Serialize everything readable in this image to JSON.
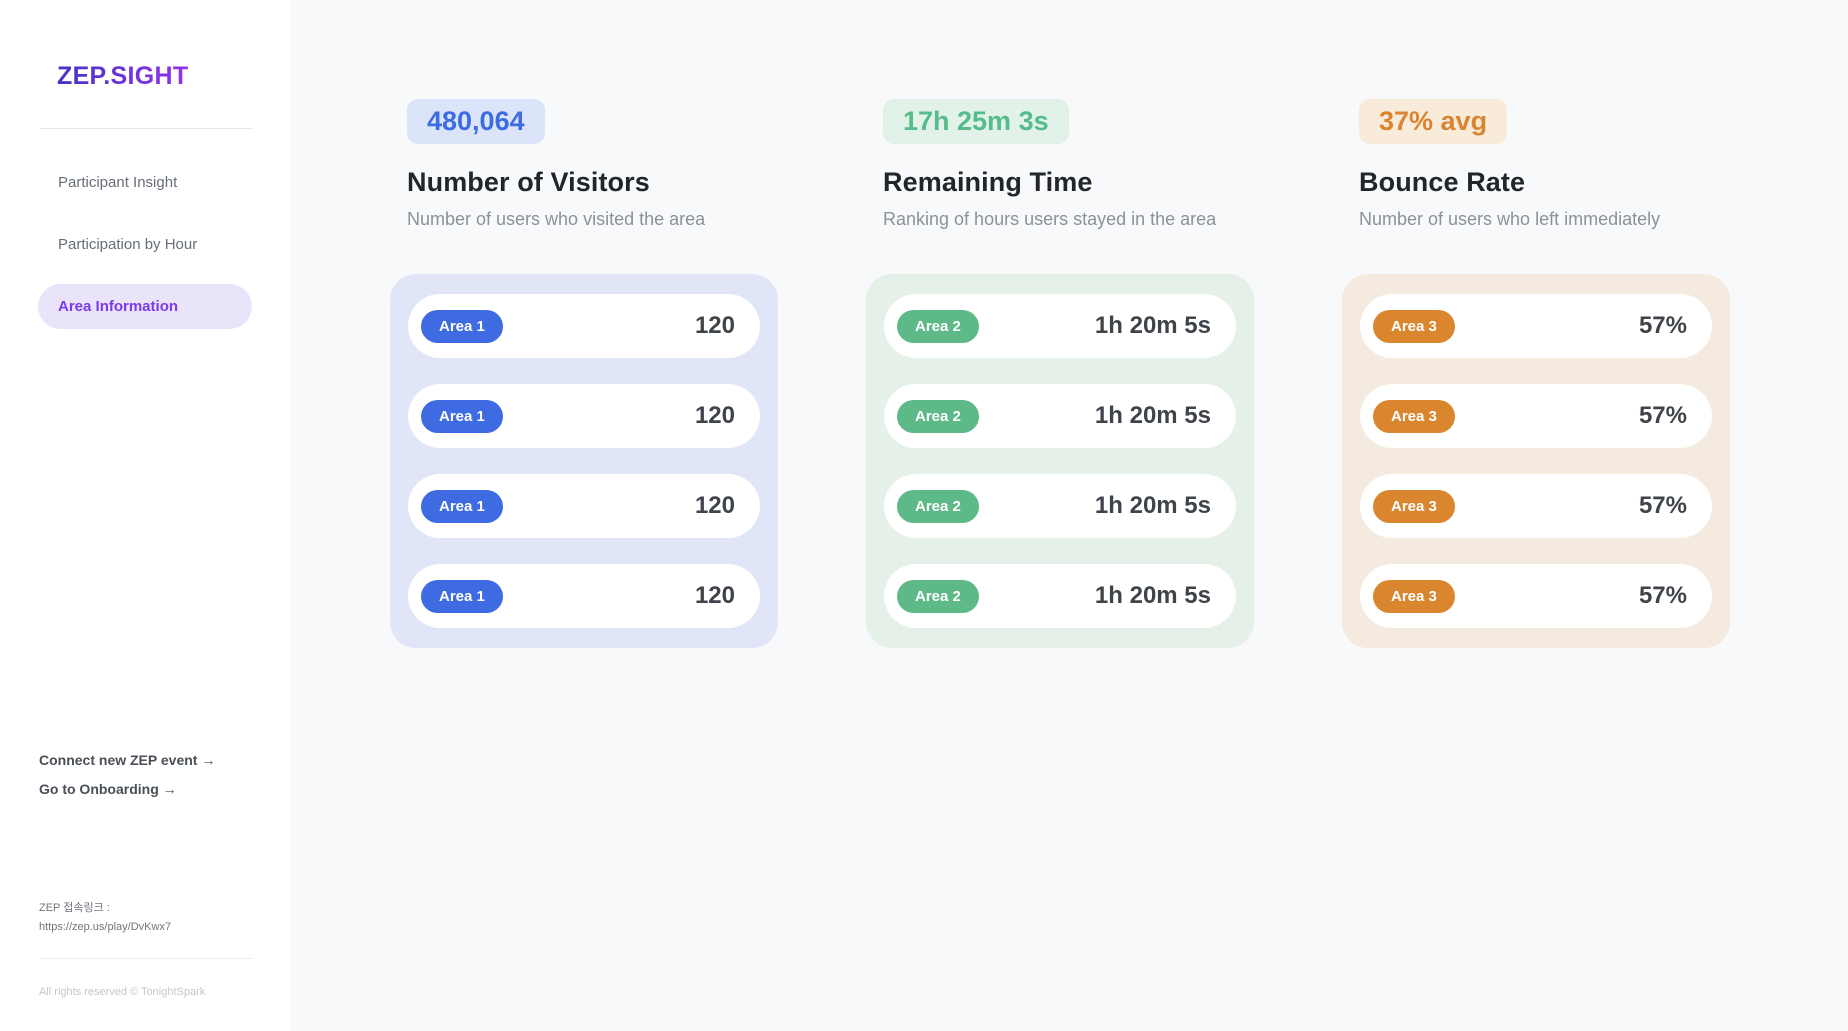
{
  "brand": {
    "logo_text": "ZEP.SIGHT",
    "logo_gradient_from": "#4433c6",
    "logo_gradient_to": "#9333ea",
    "active_nav_bg": "#eae4fa",
    "active_nav_text": "#7c3aed"
  },
  "sidebar": {
    "nav": [
      {
        "label": "Participant Insight"
      },
      {
        "label": "Participation by Hour"
      },
      {
        "label": "Area Information"
      }
    ],
    "links": [
      {
        "label": "Connect new ZEP event →"
      },
      {
        "label": "Go to Onboarding →"
      }
    ],
    "zep_link_label": "ZEP 접속링크 :",
    "zep_link_url": "https://zep.us/play/DvKwx7",
    "copyright": "All rights reserved © TonightSpark"
  },
  "columns": [
    {
      "badge": "480,064",
      "title": "Number of Visitors",
      "subtitle": "Number of users who visited the area",
      "colors": {
        "accent": "#3d6be3",
        "badge_bg": "#dce4f9",
        "card_bg": "#e0e6f7",
        "pill": "#3e6be2"
      },
      "rows": [
        {
          "area": "Area 1",
          "value": "120"
        },
        {
          "area": "Area 1",
          "value": "120"
        },
        {
          "area": "Area 1",
          "value": "120"
        },
        {
          "area": "Area 1",
          "value": "120"
        }
      ]
    },
    {
      "badge": "17h 25m 3s",
      "title": "Remaining Time",
      "subtitle": "Ranking of hours users stayed in the area",
      "colors": {
        "accent": "#54bd8b",
        "badge_bg": "#e3f2e8",
        "card_bg": "#e5f0e8",
        "pill": "#5eb989"
      },
      "rows": [
        {
          "area": "Area 2",
          "value": "1h 20m 5s"
        },
        {
          "area": "Area 2",
          "value": "1h 20m 5s"
        },
        {
          "area": "Area 2",
          "value": "1h 20m 5s"
        },
        {
          "area": "Area 2",
          "value": "1h 20m 5s"
        }
      ]
    },
    {
      "badge": "37% avg",
      "title": "Bounce Rate",
      "subtitle": "Number of users who left immediately",
      "colors": {
        "accent": "#db8430",
        "badge_bg": "#f9ebda",
        "card_bg": "#f4eadf",
        "pill": "#d9862f"
      },
      "rows": [
        {
          "area": "Area 3",
          "value": "57%"
        },
        {
          "area": "Area 3",
          "value": "57%"
        },
        {
          "area": "Area 3",
          "value": "57%"
        },
        {
          "area": "Area 3",
          "value": "57%"
        }
      ]
    }
  ]
}
